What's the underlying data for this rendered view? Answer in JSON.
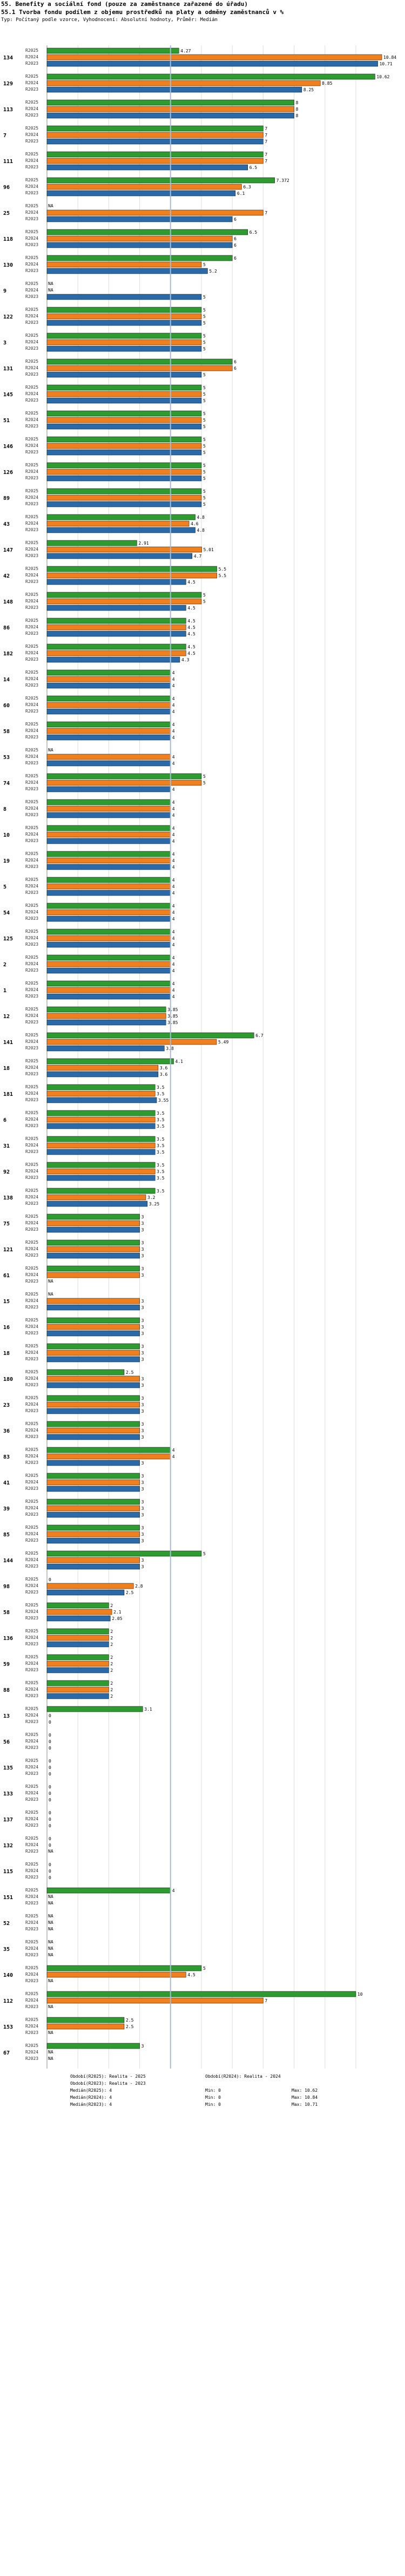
{
  "header": {
    "title": "55. Benefity a sociální fond (pouze za zaměstnance zařazené do úřadu)",
    "subtitle": "55.1 Tvorba fondu podílem z objemu prostředků na platy a odměny zaměstnanců v %",
    "note": "Typ: Počítaný podle vzorce, Vyhodnocení: Absolutní hodnoty, Průměr: Medián"
  },
  "colors": {
    "r2025": "#2e9b2e",
    "r2024": "#f07f1e",
    "r2023": "#2a6aa8",
    "median": "#a7bcd6",
    "grid": "#dddddd"
  },
  "chart_data": {
    "type": "bar",
    "orientation": "horizontal",
    "x_axis": {
      "min": 0,
      "max": 10.84
    },
    "median_value": 4,
    "series_labels": [
      "R2025",
      "R2024",
      "R2023"
    ],
    "missing_label": "NA",
    "groups": [
      {
        "id": "134",
        "values": [
          4.27,
          10.84,
          10.71
        ]
      },
      {
        "id": "129",
        "values": [
          10.62,
          8.85,
          8.25
        ]
      },
      {
        "id": "113",
        "values": [
          8,
          8,
          8
        ]
      },
      {
        "id": "7",
        "values": [
          7,
          7,
          7
        ]
      },
      {
        "id": "111",
        "values": [
          7,
          7,
          6.5
        ]
      },
      {
        "id": "96",
        "values": [
          7.372,
          6.3,
          6.1
        ]
      },
      {
        "id": "25",
        "values": [
          null,
          7,
          6
        ]
      },
      {
        "id": "118",
        "values": [
          6.5,
          6,
          6
        ]
      },
      {
        "id": "130",
        "values": [
          6,
          5,
          5.2
        ]
      },
      {
        "id": "9",
        "values": [
          null,
          null,
          5
        ]
      },
      {
        "id": "122",
        "values": [
          5,
          5,
          5
        ]
      },
      {
        "id": "3",
        "values": [
          5,
          5,
          5
        ]
      },
      {
        "id": "131",
        "values": [
          6,
          6,
          5
        ]
      },
      {
        "id": "145",
        "values": [
          5,
          5,
          5
        ]
      },
      {
        "id": "51",
        "values": [
          5,
          5,
          5
        ]
      },
      {
        "id": "146",
        "values": [
          5,
          5,
          5
        ]
      },
      {
        "id": "126",
        "values": [
          5,
          5,
          5
        ]
      },
      {
        "id": "89",
        "values": [
          5,
          5,
          5
        ]
      },
      {
        "id": "43",
        "values": [
          4.8,
          4.6,
          4.8
        ]
      },
      {
        "id": "147",
        "values": [
          2.91,
          5.01,
          4.7
        ]
      },
      {
        "id": "42",
        "values": [
          5.5,
          5.5,
          4.5
        ]
      },
      {
        "id": "148",
        "values": [
          5,
          5,
          4.5
        ]
      },
      {
        "id": "86",
        "values": [
          4.5,
          4.5,
          4.5
        ]
      },
      {
        "id": "182",
        "values": [
          4.5,
          4.5,
          4.3
        ]
      },
      {
        "id": "14",
        "values": [
          4,
          4,
          4
        ]
      },
      {
        "id": "60",
        "values": [
          4,
          4,
          4
        ]
      },
      {
        "id": "58",
        "values": [
          4,
          4,
          4
        ]
      },
      {
        "id": "53",
        "values": [
          null,
          4,
          4
        ]
      },
      {
        "id": "74",
        "values": [
          5,
          5,
          4
        ]
      },
      {
        "id": "8",
        "values": [
          4,
          4,
          4
        ]
      },
      {
        "id": "10",
        "values": [
          4,
          4,
          4
        ]
      },
      {
        "id": "19",
        "values": [
          4,
          4,
          4
        ]
      },
      {
        "id": "5",
        "values": [
          4,
          4,
          4
        ]
      },
      {
        "id": "54",
        "values": [
          4,
          4,
          4
        ]
      },
      {
        "id": "125",
        "values": [
          4,
          4,
          4
        ]
      },
      {
        "id": "2",
        "values": [
          4,
          4,
          4
        ]
      },
      {
        "id": "1",
        "values": [
          4,
          4,
          4
        ]
      },
      {
        "id": "12",
        "values": [
          3.85,
          3.85,
          3.85
        ]
      },
      {
        "id": "141",
        "values": [
          6.7,
          5.49,
          3.8
        ]
      },
      {
        "id": "18",
        "values": [
          4.1,
          3.6,
          3.6
        ]
      },
      {
        "id": "181",
        "values": [
          3.5,
          3.5,
          3.55
        ]
      },
      {
        "id": "6",
        "values": [
          3.5,
          3.5,
          3.5
        ]
      },
      {
        "id": "31",
        "values": [
          3.5,
          3.5,
          3.5
        ]
      },
      {
        "id": "92",
        "values": [
          3.5,
          3.5,
          3.5
        ]
      },
      {
        "id": "138",
        "values": [
          3.5,
          3.2,
          3.25
        ]
      },
      {
        "id": "75",
        "values": [
          3,
          3,
          3
        ]
      },
      {
        "id": "121",
        "values": [
          3,
          3,
          3
        ]
      },
      {
        "id": "61",
        "values": [
          3,
          3,
          null
        ]
      },
      {
        "id": "15",
        "values": [
          null,
          3,
          3
        ]
      },
      {
        "id": "16",
        "values": [
          3,
          3,
          3
        ]
      },
      {
        "id": "18b",
        "label": "18",
        "values": [
          3,
          3,
          3
        ]
      },
      {
        "id": "180",
        "values": [
          2.5,
          3,
          3
        ]
      },
      {
        "id": "23",
        "values": [
          3,
          3,
          3
        ]
      },
      {
        "id": "36",
        "values": [
          3,
          3,
          3
        ]
      },
      {
        "id": "83",
        "values": [
          4,
          4,
          3
        ]
      },
      {
        "id": "41",
        "values": [
          3,
          3,
          3
        ]
      },
      {
        "id": "39",
        "values": [
          3,
          3,
          3
        ]
      },
      {
        "id": "85",
        "values": [
          3,
          3,
          3
        ]
      },
      {
        "id": "144",
        "values": [
          5,
          3,
          3
        ]
      },
      {
        "id": "98",
        "values": [
          0,
          2.8,
          2.5
        ]
      },
      {
        "id": "58b",
        "label": "58",
        "values": [
          2,
          2.1,
          2.05
        ]
      },
      {
        "id": "136",
        "values": [
          2,
          2,
          2
        ]
      },
      {
        "id": "59",
        "values": [
          2,
          2,
          2
        ]
      },
      {
        "id": "88",
        "values": [
          2,
          2,
          2
        ]
      },
      {
        "id": "13",
        "values": [
          3.1,
          0,
          0
        ]
      },
      {
        "id": "56",
        "values": [
          0,
          0,
          0
        ]
      },
      {
        "id": "135",
        "values": [
          0,
          0,
          0
        ]
      },
      {
        "id": "133",
        "values": [
          0,
          0,
          0
        ]
      },
      {
        "id": "137",
        "values": [
          0,
          0,
          0
        ]
      },
      {
        "id": "132",
        "values": [
          0,
          0,
          null
        ]
      },
      {
        "id": "115",
        "values": [
          0,
          0,
          0
        ]
      },
      {
        "id": "151",
        "values": [
          4,
          null,
          null
        ]
      },
      {
        "id": "52",
        "values": [
          null,
          null,
          null
        ]
      },
      {
        "id": "35",
        "values": [
          null,
          null,
          null
        ]
      },
      {
        "id": "140",
        "values": [
          5,
          4.5,
          null
        ]
      },
      {
        "id": "112",
        "values": [
          10,
          7,
          null
        ]
      },
      {
        "id": "153",
        "values": [
          2.5,
          2.5,
          null
        ]
      },
      {
        "id": "67",
        "values": [
          3,
          null,
          null
        ]
      }
    ]
  },
  "footer": {
    "col1": [
      "Období(R2025): Realita - 2025",
      "Období(R2023): Realita - 2023",
      "Medián(R2025): 4",
      "Medián(R2024): 4",
      "Medián(R2023): 4"
    ],
    "col2": [
      "Období(R2024): Realita - 2024",
      "",
      "Min: 0",
      "Min: 0",
      "Min: 0"
    ],
    "col3": [
      "",
      "",
      "Max: 10.62",
      "Max: 10.84",
      "Max: 10.71"
    ]
  }
}
